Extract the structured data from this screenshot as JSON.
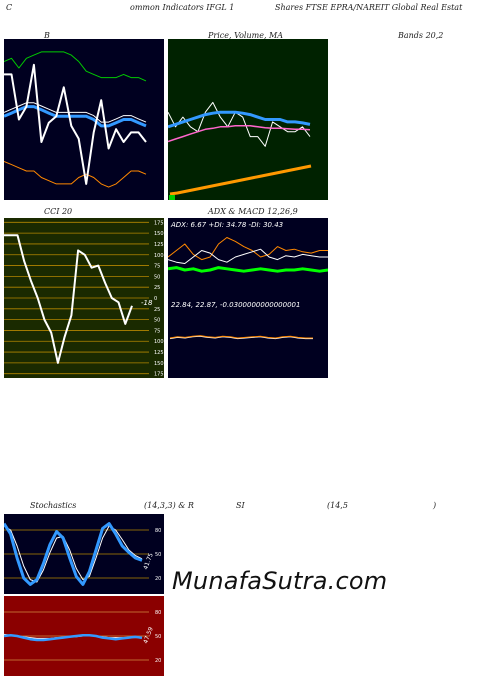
{
  "header": {
    "left": "C",
    "mid": "ommon  Indicators IFGL  1",
    "right": "Shares FTSE EPRA/NAREIT Global Real Estat"
  },
  "bands": {
    "label": "B",
    "bands_text": "Bands 20,2",
    "colors": {
      "bg": "#000020",
      "upper": "#00cc00",
      "middle": "#3399ff",
      "lower": "#ff8800",
      "price": "#ffffff"
    }
  },
  "price_ma": {
    "label": "Price,  Volume,  MA",
    "colors": {
      "bg": "#002200",
      "price": "#ffffff",
      "ma1": "#3399ff",
      "ma2": "#ff66cc",
      "ma3": "#ffffff",
      "volume": "#ff9900"
    }
  },
  "cci": {
    "label": "CCI 20",
    "current_value": "-18",
    "colors": {
      "bg": "#1a2a00",
      "line": "#ffffff",
      "grid": "#b38600"
    }
  },
  "adx": {
    "label": "ADX  & MACD 12,26,9",
    "adx_text": "ADX: 6.67  +DI: 34.78  -DI: 30.43",
    "macd_text": "22.84,  22.87,  -0.0300000000000001",
    "colors": {
      "bg": "#000020",
      "adx": "#00ff00",
      "plus_di": "#ff8800",
      "minus_di": "#ffffff"
    }
  },
  "stoch": {
    "label_left": "Stochastics",
    "label_params": "(14,3,3) & R",
    "label_si": "SI",
    "label_rsi": "(14,5",
    "label_close": ")",
    "stoch_value": "41.75",
    "rsi_value": "47.59",
    "colors": {
      "bg": "#000020",
      "rsi_bg": "#8b0000",
      "k": "#3399ff",
      "d": "#ffffff"
    }
  },
  "watermark": "MunafaSutra.com",
  "chart_data": [
    {
      "type": "line",
      "title": "B",
      "series": [
        {
          "name": "upper",
          "values": [
            24.6,
            24.7,
            24.4,
            24.7,
            24.8,
            24.9,
            24.9,
            24.9,
            24.9,
            24.8,
            24.6,
            24.3,
            24.2,
            24.1,
            24.1,
            24.1,
            24.2,
            24.1,
            24.1,
            24.0
          ]
        },
        {
          "name": "middle",
          "values": [
            22.9,
            23.0,
            23.1,
            23.2,
            23.2,
            23.1,
            23.0,
            22.9,
            22.9,
            22.9,
            22.9,
            22.9,
            22.8,
            22.6,
            22.6,
            22.7,
            22.8,
            22.8,
            22.7,
            22.6
          ]
        },
        {
          "name": "lower",
          "values": [
            21.5,
            21.4,
            21.3,
            21.2,
            21.2,
            21.0,
            20.9,
            20.8,
            20.8,
            20.8,
            21.0,
            21.1,
            21.0,
            20.8,
            20.7,
            20.8,
            21.0,
            21.2,
            21.2,
            21.1
          ]
        },
        {
          "name": "price",
          "values": [
            24.2,
            24.2,
            22.8,
            23.2,
            24.5,
            22.1,
            22.7,
            22.9,
            23.8,
            22.6,
            22.2,
            20.8,
            22.4,
            23.4,
            21.9,
            22.5,
            22.1,
            22.4,
            22.4,
            22.1
          ]
        }
      ]
    },
    {
      "type": "line",
      "title": "Price,  Volume,  MA",
      "series": [
        {
          "name": "price",
          "values": [
            22.3,
            22.0,
            22.2,
            22.0,
            21.9,
            22.3,
            22.5,
            22.2,
            22.0,
            22.3,
            22.2,
            21.8,
            21.8,
            21.6,
            22.1,
            22.0,
            21.9,
            21.9,
            22.0,
            21.8
          ]
        },
        {
          "name": "ma1",
          "values": [
            22.0,
            22.05,
            22.1,
            22.15,
            22.2,
            22.25,
            22.28,
            22.3,
            22.3,
            22.3,
            22.28,
            22.25,
            22.2,
            22.15,
            22.15,
            22.15,
            22.1,
            22.1,
            22.08,
            22.05
          ]
        },
        {
          "name": "ma2",
          "values": [
            21.7,
            21.75,
            21.8,
            21.85,
            21.9,
            21.95,
            21.97,
            22.0,
            22.0,
            22.02,
            22.02,
            22.02,
            22.0,
            21.98,
            21.97,
            21.97,
            21.96,
            21.95,
            21.95,
            21.94
          ]
        },
        {
          "name": "volume",
          "values": [
            1,
            1.2,
            1.5,
            1.8,
            2.1,
            2.4,
            2.7,
            3.0,
            3.3,
            3.6,
            3.9,
            4.2,
            4.5,
            4.8,
            5.1,
            5.4,
            5.7,
            6.0,
            6.3,
            6.6
          ]
        }
      ]
    },
    {
      "type": "line",
      "title": "CCI 20",
      "yticks": [
        175,
        150,
        125,
        100,
        75,
        50,
        25,
        0,
        -25,
        -50,
        -75,
        -100,
        -125,
        -150,
        -175
      ],
      "ytick_labels": [
        "175",
        "150",
        "125",
        "100",
        "75",
        "50",
        "25",
        "0",
        "25",
        "50",
        "75",
        "100",
        "125",
        "150",
        "175"
      ],
      "ylim": [
        -185,
        185
      ],
      "series": [
        {
          "name": "CCI",
          "values": [
            145,
            145,
            145,
            85,
            40,
            0,
            -50,
            -80,
            -150,
            -90,
            -40,
            110,
            100,
            70,
            75,
            35,
            0,
            -10,
            -60,
            -18
          ]
        }
      ]
    },
    {
      "type": "line",
      "title": "ADX  & MACD 12,26,9",
      "series": [
        {
          "name": "ADX",
          "values": [
            8,
            9,
            7,
            8,
            6,
            7,
            9,
            8,
            7,
            6,
            7,
            8,
            7,
            6,
            7,
            7,
            8,
            7,
            6,
            7
          ]
        },
        {
          "name": "+DI",
          "values": [
            30,
            35,
            40,
            32,
            28,
            30,
            40,
            45,
            42,
            38,
            35,
            30,
            32,
            38,
            35,
            36,
            34,
            33,
            35,
            35
          ]
        },
        {
          "name": "-DI",
          "values": [
            28,
            26,
            25,
            30,
            35,
            33,
            28,
            26,
            30,
            32,
            34,
            36,
            30,
            28,
            31,
            30,
            32,
            31,
            30,
            30
          ]
        },
        {
          "name": "MACD",
          "values": [
            22.84,
            22.86,
            22.85,
            22.87,
            22.88,
            22.86,
            22.85,
            22.87,
            22.86,
            22.84,
            22.85,
            22.86,
            22.87,
            22.85,
            22.84,
            22.86,
            22.87,
            22.85,
            22.84,
            22.84
          ]
        }
      ]
    },
    {
      "type": "line",
      "title": "Stochastics",
      "yticks": [
        80,
        50,
        20
      ],
      "ylim": [
        0,
        100
      ],
      "series": [
        {
          "name": "%K",
          "values": [
            88,
            75,
            45,
            20,
            12,
            18,
            38,
            62,
            78,
            70,
            45,
            22,
            12,
            28,
            55,
            82,
            88,
            75,
            60,
            52,
            45,
            42
          ]
        },
        {
          "name": "%D",
          "values": [
            85,
            80,
            60,
            35,
            18,
            15,
            30,
            52,
            70,
            72,
            55,
            32,
            18,
            22,
            45,
            70,
            85,
            80,
            68,
            55,
            48,
            44
          ]
        }
      ]
    },
    {
      "type": "line",
      "title": "SI",
      "yticks": [
        80,
        50,
        20
      ],
      "ylim": [
        0,
        100
      ],
      "series": [
        {
          "name": "RSI",
          "values": [
            50,
            51,
            50,
            48,
            46,
            45,
            45,
            46,
            47,
            48,
            49,
            50,
            51,
            51,
            50,
            48,
            47,
            46,
            47,
            48,
            49,
            47.59
          ]
        },
        {
          "name": "RSI-signal",
          "values": [
            52,
            51,
            50,
            49,
            48,
            47,
            47,
            47,
            48,
            48,
            49,
            49,
            50,
            50,
            50,
            49,
            48,
            48,
            48,
            48,
            48,
            48
          ]
        }
      ]
    }
  ]
}
